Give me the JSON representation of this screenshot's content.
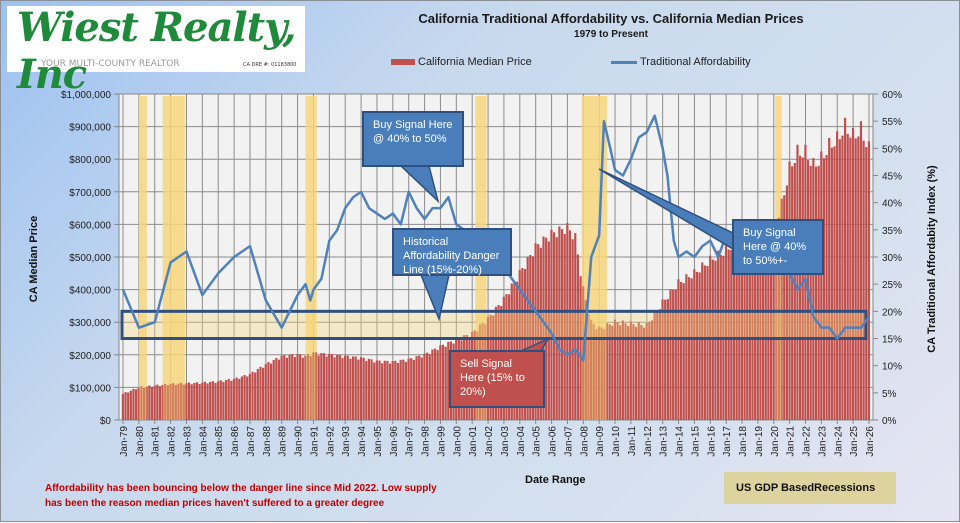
{
  "logo": {
    "name": "Wiest Realty, Inc",
    "tagline": "YOUR MULTI-COUNTY REALTOR",
    "license": "CA DRE #: 01183800"
  },
  "colors": {
    "price_bar": "#c0504d",
    "affordability_line": "#4f81bd",
    "recession_band": "#f7d77a",
    "danger_band_border": "#2f4f7f",
    "callout_blue": "#4a7ebb",
    "callout_red": "#c0504d",
    "note_text": "#c00000",
    "recession_legend_bg": "#ddd39e"
  },
  "chart_data": {
    "type": "bar+line",
    "title": "California Traditional Affordability  vs. California Median Prices",
    "subtitle": "1979 to Present",
    "xlabel": "Date Range",
    "ylabel": "CA Median  Price",
    "y2label": "CA Traditional  Affordabity Index  (%)",
    "legend": {
      "placement": "top-center",
      "entries": [
        "California Median Price",
        "Traditional Affordability"
      ]
    },
    "ylim": [
      0,
      1000000
    ],
    "y2lim": [
      0,
      60
    ],
    "grid": true,
    "y_ticks": [
      "$0",
      "$100,000",
      "$200,000",
      "$300,000",
      "$400,000",
      "$500,000",
      "$600,000",
      "$700,000",
      "$800,000",
      "$900,000",
      "$1,000,000"
    ],
    "y2_ticks": [
      "0%",
      "5%",
      "10%",
      "15%",
      "20%",
      "25%",
      "30%",
      "35%",
      "40%",
      "45%",
      "50%",
      "55%",
      "60%"
    ],
    "x_ticks": [
      "Jan-79",
      "Jan-80",
      "Jan-81",
      "Jan-82",
      "Jan-83",
      "Jan-84",
      "Jan-85",
      "Jan-86",
      "Jan-87",
      "Jan-88",
      "Jan-89",
      "Jan-90",
      "Jan-91",
      "Jan-92",
      "Jan-93",
      "Jan-94",
      "Jan-95",
      "Jan-96",
      "Jan-97",
      "Jan-98",
      "Jan-99",
      "Jan-00",
      "Jan-01",
      "Jan-02",
      "Jan-03",
      "Jan-04",
      "Jan-05",
      "Jan-06",
      "Jan-07",
      "Jan-08",
      "Jan-09",
      "Jan-10",
      "Jan-11",
      "Jan-12",
      "Jan-13",
      "Jan-14",
      "Jan-15",
      "Jan-16",
      "Jan-17",
      "Jan-18",
      "Jan-19",
      "Jan-20",
      "Jan-21",
      "Jan-22",
      "Jan-23",
      "Jan-24",
      "Jan-25",
      "Jan-26"
    ],
    "series": [
      {
        "name": "California Median Price",
        "type": "bar",
        "x_year": [
          1979,
          1980,
          1981,
          1982,
          1983,
          1984,
          1985,
          1986,
          1987,
          1988,
          1989,
          1990,
          1990.5,
          1991,
          1992,
          1993,
          1994,
          1995,
          1996,
          1997,
          1998,
          1999,
          2000,
          2001,
          2002,
          2003,
          2004,
          2005,
          2006,
          2007,
          2007.5,
          2008,
          2008.5,
          2009,
          2010,
          2011,
          2012,
          2013,
          2014,
          2015,
          2016,
          2017,
          2018,
          2019,
          2020,
          2020.5,
          2021,
          2021.5,
          2022,
          2022.5,
          2023,
          2023.5,
          2024,
          2024.5,
          2025,
          2025.5,
          2026
        ],
        "values": [
          80000,
          100000,
          105000,
          110000,
          112000,
          114000,
          118000,
          125000,
          140000,
          170000,
          195000,
          200000,
          195000,
          205000,
          200000,
          195000,
          190000,
          180000,
          178000,
          185000,
          200000,
          225000,
          245000,
          265000,
          310000,
          370000,
          450000,
          530000,
          570000,
          590000,
          560000,
          400000,
          300000,
          280000,
          300000,
          295000,
          290000,
          360000,
          420000,
          450000,
          490000,
          520000,
          560000,
          570000,
          580000,
          660000,
          770000,
          820000,
          820000,
          780000,
          800000,
          840000,
          860000,
          900000,
          870000,
          890000,
          830000
        ]
      },
      {
        "name": "Traditional Affordability",
        "type": "line",
        "unit": "%",
        "x_year": [
          1979,
          1980,
          1981,
          1982,
          1983,
          1984,
          1985,
          1986,
          1987,
          1988,
          1989,
          1989.5,
          1990,
          1990.5,
          1990.8,
          1991,
          1991.5,
          1992,
          1992.5,
          1993,
          1993.5,
          1994,
          1994.5,
          1995,
          1995.5,
          1996,
          1996.5,
          1997,
          1997.5,
          1998,
          1998.5,
          1999,
          1999.5,
          2000,
          2000.5,
          2001,
          2002,
          2003,
          2004,
          2005,
          2006,
          2006.5,
          2007,
          2007.5,
          2008,
          2008.5,
          2009,
          2009.3,
          2009.7,
          2010,
          2010.5,
          2011,
          2011.5,
          2012,
          2012.5,
          2013,
          2013.3,
          2013.7,
          2014,
          2014.5,
          2015,
          2015.5,
          2016,
          2016.5,
          2017,
          2017.5,
          2018,
          2018.5,
          2019,
          2019.5,
          2020,
          2020.5,
          2021,
          2021.5,
          2022,
          2022.5,
          2023,
          2023.5,
          2024,
          2024.5,
          2025,
          2025.5,
          2026
        ],
        "values": [
          24,
          17,
          18,
          29,
          31,
          23,
          27,
          30,
          32,
          22,
          17,
          20,
          23,
          25,
          22,
          24,
          26,
          33,
          35,
          39,
          41,
          42,
          39,
          38,
          37,
          38,
          36,
          42,
          39,
          37,
          39,
          39,
          41,
          36,
          35,
          33,
          30,
          28,
          24,
          20,
          16,
          13,
          12,
          13,
          11,
          30,
          34,
          55,
          50,
          46,
          45,
          48,
          52,
          53,
          56,
          50,
          45,
          33,
          30,
          31,
          30,
          32,
          33,
          30,
          34,
          32,
          33,
          30,
          31,
          33,
          32,
          31,
          27,
          24,
          26,
          19,
          17,
          17,
          15,
          17,
          17,
          17,
          19
        ]
      }
    ],
    "recessions": [
      [
        1980.0,
        1980.5
      ],
      [
        1981.5,
        1982.9
      ],
      [
        1990.5,
        1991.2
      ],
      [
        2001.2,
        2001.9
      ],
      [
        2007.9,
        2009.5
      ],
      [
        2020.1,
        2020.5
      ]
    ],
    "danger_band": [
      15,
      20
    ],
    "annotations": [
      {
        "id": "buy-signal-1",
        "text_lines": [
          "Buy Signal Here",
          "@ 40% to 50%"
        ],
        "style": "blue"
      },
      {
        "id": "danger-line",
        "text_lines": [
          "Historical",
          "Affordability Danger",
          "Line (15%-20%)"
        ],
        "style": "blue"
      },
      {
        "id": "sell-signal",
        "text_lines": [
          "Sell Signal",
          "Here (15% to",
          "20%)"
        ],
        "style": "red"
      },
      {
        "id": "buy-signal-2",
        "text_lines": [
          "Buy Signal",
          "Here @ 40%",
          "to 50%+-"
        ],
        "style": "blue"
      }
    ]
  },
  "footer": {
    "note_lines": [
      "Affordability has been bouncing  below the danger line since Mid 2022. Low supply",
      "has been the reason median prices haven't suffered to a greater degree"
    ],
    "date_range_label": "Date Range",
    "recession_legend": "US GDP BasedRecessions"
  }
}
